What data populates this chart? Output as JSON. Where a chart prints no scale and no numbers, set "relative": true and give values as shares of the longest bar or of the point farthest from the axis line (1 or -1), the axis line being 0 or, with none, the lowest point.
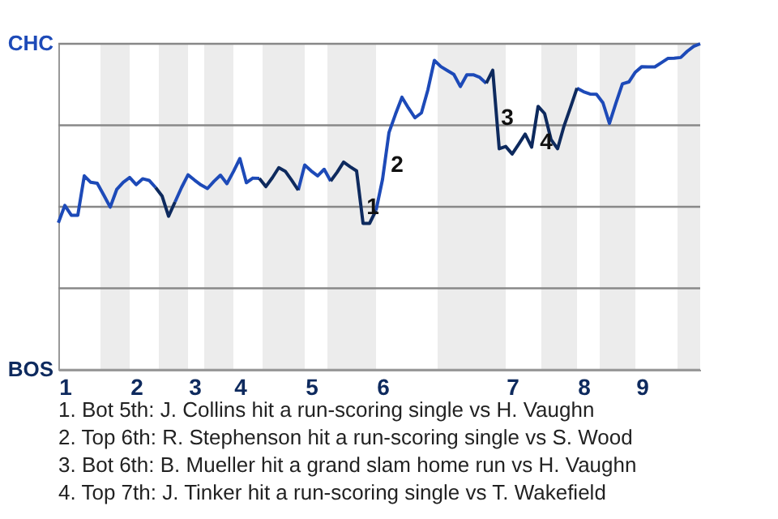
{
  "chart_data": {
    "type": "line",
    "relative": true,
    "grid": false,
    "marker": "none",
    "line_style": "solid",
    "categories": [
      null,
      "1",
      null,
      null,
      null,
      null,
      null,
      null,
      null,
      null,
      null,
      null,
      "2",
      null,
      null,
      null,
      null,
      null,
      null,
      null,
      null,
      "3",
      null,
      null,
      null,
      null,
      null,
      null,
      "4",
      null,
      null,
      null,
      null,
      null,
      null,
      null,
      null,
      null,
      null,
      "5",
      null,
      null,
      null,
      null,
      null,
      null,
      null,
      null,
      null,
      null,
      "6",
      null,
      null,
      null,
      null,
      null,
      null,
      null,
      null,
      null,
      null,
      null,
      null,
      null,
      null,
      null,
      null,
      null,
      null,
      null,
      "7",
      null,
      null,
      null,
      null,
      null,
      null,
      null,
      null,
      null,
      null,
      "8",
      null,
      null,
      null,
      null,
      null,
      null,
      null,
      null,
      "9",
      null,
      null,
      null,
      null,
      null,
      null,
      null,
      null,
      null
    ],
    "ref_lines": [
      {
        "axis": "y",
        "value": 1,
        "label": "CHC",
        "color": "#888888"
      },
      {
        "axis": "y",
        "value": 0.75,
        "color": "#888888"
      },
      {
        "axis": "y",
        "value": 0.5,
        "color": "#888888"
      },
      {
        "axis": "y",
        "value": 0.25,
        "color": "#888888"
      },
      {
        "axis": "y",
        "value": 0,
        "label": "BOS",
        "color": "#999999"
      }
    ],
    "series": [
      {
        "color": "#1d4ab8",
        "values": [
          0.451,
          0.504,
          0.474,
          0.474,
          0.595,
          0.575,
          0.572,
          0.536,
          0.499,
          0.553,
          0.575,
          0.59,
          0.568,
          0.586,
          0.581,
          0.559,
          null,
          null,
          0.515,
          0.559,
          0.598,
          0.582,
          0.567,
          0.556,
          0.578,
          0.597,
          0.571,
          0.608,
          0.648,
          0.574,
          0.588,
          0.587,
          null,
          null,
          null,
          null,
          null,
          0.551,
          0.628,
          0.61,
          0.595,
          0.615,
          0.579,
          null,
          null,
          null,
          null,
          null,
          null,
          0.489,
          0.584,
          0.728,
          0.784,
          0.836,
          0.803,
          0.773,
          0.788,
          0.859,
          0.949,
          0.93,
          0.918,
          0.906,
          0.869,
          0.905,
          0.905,
          0.897,
          0.879,
          null,
          null,
          null,
          null,
          null,
          null,
          null,
          null,
          null,
          null,
          null,
          null,
          null,
          0.864,
          0.853,
          0.846,
          0.845,
          0.819,
          0.756,
          0.818,
          0.877,
          0.883,
          0.913,
          0.93,
          0.929,
          0.929,
          0.942,
          0.955,
          0.956,
          0.958,
          0.977,
          0.992,
          1.0
        ]
      },
      {
        "color": "#0e2a5e",
        "values": [
          null,
          null,
          null,
          null,
          null,
          null,
          null,
          null,
          null,
          null,
          null,
          null,
          null,
          null,
          null,
          0.559,
          0.533,
          0.471,
          0.515,
          null,
          null,
          null,
          null,
          null,
          null,
          null,
          null,
          null,
          null,
          null,
          null,
          0.587,
          0.562,
          0.589,
          0.62,
          0.609,
          0.581,
          0.551,
          null,
          null,
          null,
          null,
          0.579,
          0.606,
          0.637,
          0.623,
          0.61,
          0.449,
          0.449,
          0.489,
          null,
          null,
          null,
          null,
          null,
          null,
          null,
          null,
          null,
          null,
          null,
          null,
          null,
          null,
          null,
          null,
          0.879,
          0.919,
          0.678,
          0.685,
          0.662,
          0.692,
          0.723,
          0.683,
          0.808,
          0.786,
          0.706,
          0.678,
          0.748,
          0.805,
          0.864,
          null,
          null,
          null,
          null,
          null,
          null,
          null,
          null,
          null,
          null,
          null,
          null,
          null,
          null,
          null,
          null,
          null,
          null,
          null
        ]
      }
    ],
    "annotations": [
      "1",
      "2",
      "3",
      "4",
      "1. Bot 5th: J. Collins hit a run-scoring single vs H. Vaughn",
      "2. Top 6th: R. Stephenson hit a run-scoring single vs S. Wood",
      "3. Bot 6th: B. Mueller hit a grand slam home run vs H. Vaughn",
      "4. Top 7th: J. Tinker hit a run-scoring single vs T. Wakefield"
    ]
  }
}
